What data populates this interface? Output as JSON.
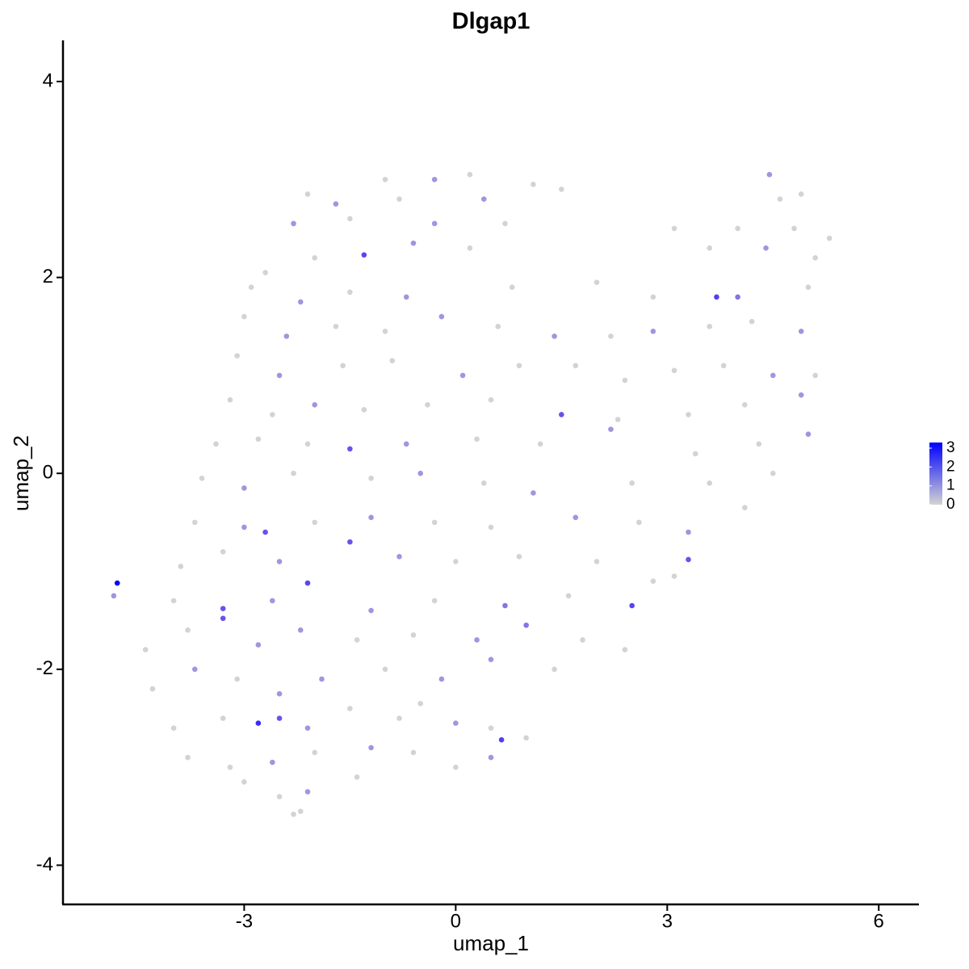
{
  "chart_data": {
    "type": "scatter",
    "title": "Dlgap1",
    "x_label": "umap_1",
    "y_label": "umap_2",
    "xlim": [
      -5.57,
      6.57
    ],
    "ylim": [
      -4.4,
      4.42
    ],
    "xticks": [
      -3,
      0,
      3,
      6
    ],
    "yticks": [
      -4,
      -2,
      0,
      2,
      4
    ],
    "color_low": "#d3d3d3",
    "color_high": "#0000ff",
    "color_lim": [
      0,
      3.3
    ],
    "colorbar_ticks": [
      0,
      1,
      2,
      3
    ],
    "x": [
      -1.0,
      -0.3,
      0.2,
      1.1,
      4.45,
      -2.1,
      -1.7,
      -0.8,
      0.4,
      1.5,
      4.6,
      4.9,
      -2.3,
      -1.5,
      -0.3,
      0.7,
      3.1,
      4.0,
      4.8,
      5.3,
      -2.7,
      -2.0,
      -1.3,
      -0.6,
      0.2,
      3.6,
      4.4,
      5.1,
      -2.9,
      -2.2,
      -1.5,
      -0.7,
      0.8,
      2.0,
      2.8,
      3.7,
      4.0,
      5.0,
      -3.0,
      -2.4,
      -1.7,
      -1.0,
      -0.2,
      0.6,
      1.4,
      2.2,
      2.8,
      3.6,
      4.2,
      4.9,
      -3.1,
      -2.5,
      -1.6,
      -0.9,
      0.1,
      0.9,
      1.7,
      2.4,
      3.1,
      3.8,
      4.5,
      5.1,
      -3.2,
      -2.6,
      -2.0,
      -1.3,
      -0.4,
      0.5,
      1.5,
      2.3,
      3.3,
      4.1,
      4.9,
      -3.4,
      -2.8,
      -2.1,
      -1.5,
      -0.7,
      0.3,
      1.2,
      2.2,
      3.4,
      4.3,
      5.0,
      -3.6,
      -3.0,
      -2.3,
      -1.2,
      -0.5,
      0.4,
      1.1,
      2.5,
      3.6,
      4.5,
      -3.7,
      -3.0,
      -2.7,
      -2.0,
      -1.2,
      -0.3,
      0.5,
      1.7,
      2.6,
      3.3,
      4.1,
      -3.9,
      -3.3,
      -2.5,
      -1.5,
      -0.8,
      0.0,
      0.9,
      2.0,
      3.3,
      3.1,
      -4.8,
      -4.85,
      -4.0,
      -3.3,
      -2.6,
      -2.1,
      -1.2,
      -0.3,
      0.7,
      1.6,
      2.5,
      2.8,
      -4.4,
      -3.8,
      -3.3,
      -2.8,
      -2.2,
      -1.4,
      -0.6,
      0.3,
      1.0,
      1.8,
      2.4,
      -4.3,
      -3.7,
      -3.1,
      -2.5,
      -1.9,
      -1.0,
      -0.2,
      0.5,
      1.4,
      -0.5,
      -4.0,
      -3.3,
      -2.8,
      -2.5,
      -2.1,
      -1.5,
      -0.8,
      0.0,
      0.5,
      1.0,
      -3.8,
      -3.2,
      -2.6,
      -2.0,
      -1.2,
      -0.6,
      0.0,
      0.65,
      0.5,
      -3.0,
      -2.5,
      -2.3,
      -2.1,
      -1.4,
      -2.2
    ],
    "y": [
      3.0,
      3.0,
      3.05,
      2.95,
      3.05,
      2.85,
      2.75,
      2.8,
      2.8,
      2.9,
      2.8,
      2.85,
      2.55,
      2.6,
      2.55,
      2.55,
      2.5,
      2.5,
      2.5,
      2.4,
      2.05,
      2.2,
      2.23,
      2.35,
      2.3,
      2.3,
      2.3,
      2.2,
      1.9,
      1.75,
      1.85,
      1.8,
      1.9,
      1.95,
      1.8,
      1.8,
      1.8,
      1.9,
      1.6,
      1.4,
      1.5,
      1.45,
      1.6,
      1.5,
      1.4,
      1.4,
      1.45,
      1.5,
      1.55,
      1.45,
      1.2,
      1.0,
      1.1,
      1.15,
      1.0,
      1.1,
      1.1,
      0.95,
      1.05,
      1.1,
      1.0,
      1.0,
      0.75,
      0.6,
      0.7,
      0.65,
      0.7,
      0.75,
      0.6,
      0.55,
      0.6,
      0.7,
      0.8,
      0.3,
      0.35,
      0.3,
      0.25,
      0.3,
      0.35,
      0.3,
      0.45,
      0.2,
      0.3,
      0.4,
      -0.05,
      -0.15,
      0.0,
      -0.05,
      0.0,
      -0.1,
      -0.2,
      -0.1,
      -0.1,
      0.0,
      -0.5,
      -0.55,
      -0.6,
      -0.5,
      -0.45,
      -0.5,
      -0.55,
      -0.45,
      -0.5,
      -0.6,
      -0.35,
      -0.95,
      -0.8,
      -0.9,
      -0.7,
      -0.85,
      -0.9,
      -0.85,
      -0.9,
      -0.88,
      -1.05,
      -1.12,
      -1.25,
      -1.3,
      -1.38,
      -1.3,
      -1.12,
      -1.4,
      -1.3,
      -1.35,
      -1.25,
      -1.35,
      -1.1,
      -1.8,
      -1.6,
      -1.48,
      -1.75,
      -1.6,
      -1.7,
      -1.65,
      -1.7,
      -1.55,
      -1.7,
      -1.8,
      -2.2,
      -2.0,
      -2.1,
      -2.25,
      -2.1,
      -2.0,
      -2.1,
      -1.9,
      -2.0,
      -2.35,
      -2.6,
      -2.5,
      -2.55,
      -2.5,
      -2.6,
      -2.4,
      -2.5,
      -2.55,
      -2.6,
      -2.7,
      -2.9,
      -3.0,
      -2.95,
      -2.85,
      -2.8,
      -2.85,
      -3.0,
      -2.72,
      -2.9,
      -3.15,
      -3.3,
      -3.48,
      -3.25,
      -3.1,
      -3.45
    ],
    "values": [
      0,
      1,
      0,
      0,
      1,
      0,
      1,
      0,
      1,
      0,
      0,
      0,
      1,
      0,
      1,
      0,
      0,
      0,
      0,
      0,
      0,
      0,
      2.2,
      1,
      0,
      0,
      1,
      0,
      0,
      1,
      0,
      1,
      0,
      0,
      0,
      2.3,
      1.5,
      0,
      0,
      1,
      0,
      0,
      1,
      0,
      1,
      0,
      1,
      0,
      0,
      1,
      0,
      1,
      0,
      0,
      1,
      0,
      0,
      0,
      0,
      0,
      1,
      0,
      0,
      0,
      1,
      0,
      0,
      0,
      2,
      0,
      0,
      0,
      1,
      0,
      0,
      0,
      2,
      1,
      0,
      0,
      1,
      0,
      0,
      1,
      0,
      1,
      0,
      0,
      1,
      0,
      1,
      0,
      0,
      0,
      0,
      1,
      2,
      0,
      1,
      0,
      0,
      1,
      0,
      1,
      0,
      0,
      0,
      1,
      2,
      1,
      0,
      0,
      0,
      2,
      0,
      3.2,
      1,
      0,
      2,
      1,
      2.2,
      1,
      0,
      1.5,
      0,
      2.2,
      0,
      0,
      0,
      2,
      1,
      1,
      0,
      0,
      1,
      1.5,
      0,
      0,
      0,
      1,
      0,
      1,
      1,
      0,
      1,
      1,
      0,
      0,
      0,
      0,
      2.6,
      2,
      1,
      0,
      0,
      1,
      0,
      0,
      0,
      0,
      1,
      0,
      1,
      0,
      0,
      2.3,
      1,
      0,
      0,
      0,
      1,
      0,
      0
    ]
  }
}
